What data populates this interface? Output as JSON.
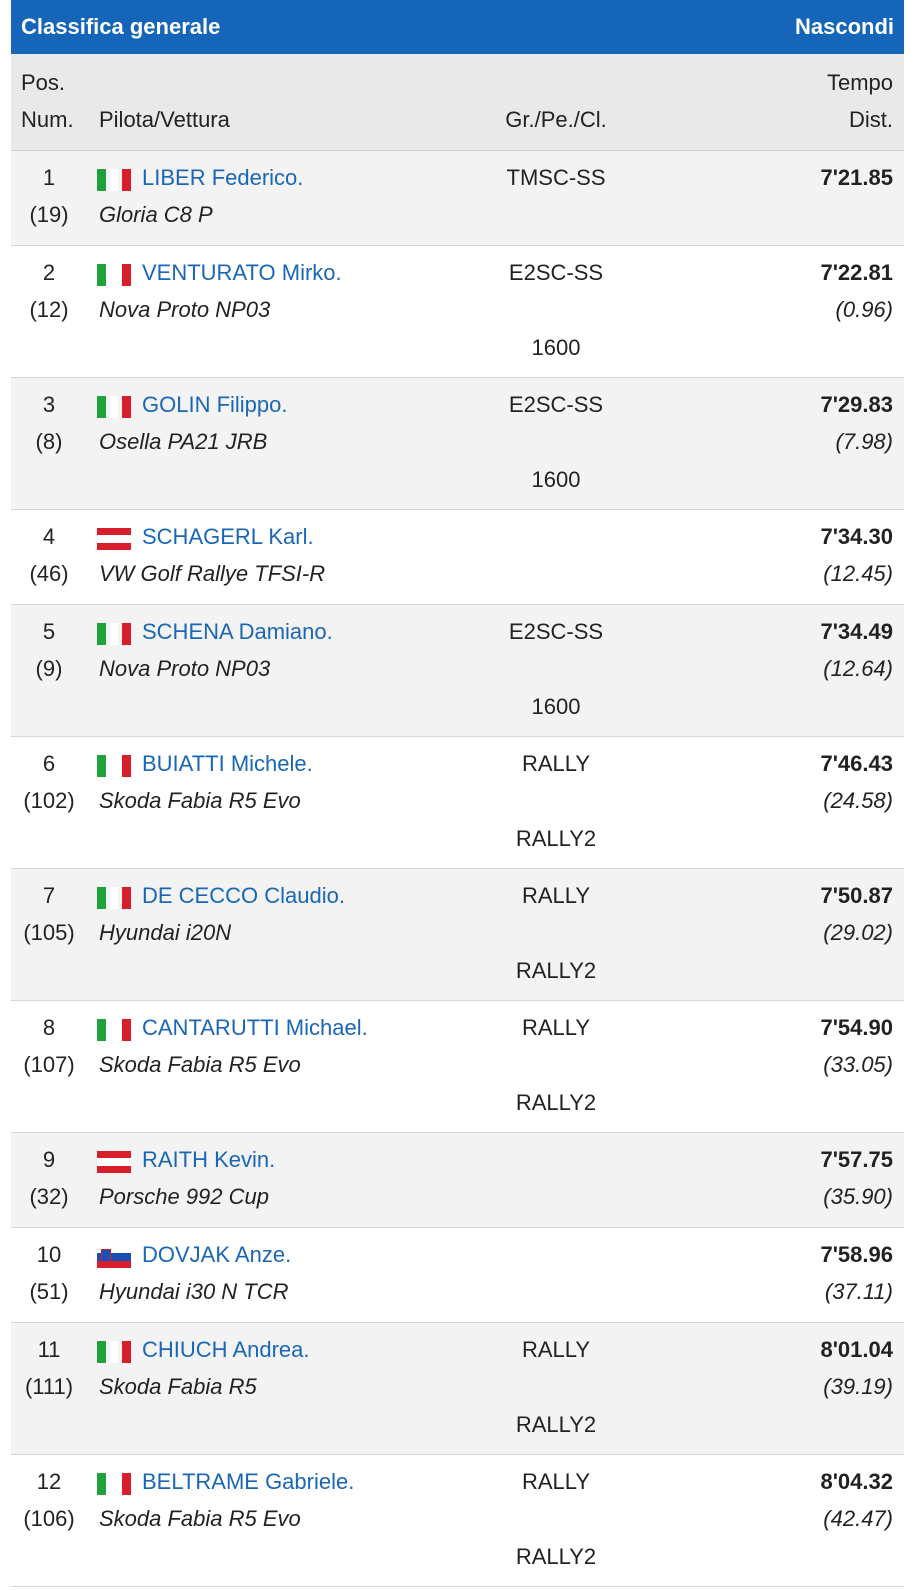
{
  "header": {
    "title": "Classifica generale",
    "toggle_label": "Nascondi"
  },
  "columns": {
    "pos": "Pos.",
    "num": "Num.",
    "driver": "Pilota/Vettura",
    "group": "Gr./Pe./Cl.",
    "time": "Tempo",
    "dist": "Dist."
  },
  "rows": [
    {
      "pos": "1",
      "num": "(19)",
      "flag": "italy-flag-icon",
      "driver": "LIBER Federico.",
      "car": "Gloria C8 P",
      "group": "TMSC-SS",
      "class": "",
      "time": "7'21.85",
      "dist": ""
    },
    {
      "pos": "2",
      "num": "(12)",
      "flag": "italy-flag-icon",
      "driver": "VENTURATO Mirko.",
      "car": "Nova Proto NP03",
      "group": "E2SC-SS",
      "class": "1600",
      "time": "7'22.81",
      "dist": "(0.96)"
    },
    {
      "pos": "3",
      "num": "(8)",
      "flag": "italy-flag-icon",
      "driver": "GOLIN Filippo.",
      "car": "Osella PA21 JRB",
      "group": "E2SC-SS",
      "class": "1600",
      "time": "7'29.83",
      "dist": "(7.98)"
    },
    {
      "pos": "4",
      "num": "(46)",
      "flag": "austria-flag-icon",
      "driver": "SCHAGERL Karl.",
      "car": "VW Golf Rallye TFSI-R",
      "group": "",
      "class": "",
      "time": "7'34.30",
      "dist": "(12.45)"
    },
    {
      "pos": "5",
      "num": "(9)",
      "flag": "italy-flag-icon",
      "driver": "SCHENA Damiano.",
      "car": "Nova Proto NP03",
      "group": "E2SC-SS",
      "class": "1600",
      "time": "7'34.49",
      "dist": "(12.64)"
    },
    {
      "pos": "6",
      "num": "(102)",
      "flag": "italy-flag-icon",
      "driver": "BUIATTI Michele.",
      "car": "Skoda Fabia R5 Evo",
      "group": "RALLY",
      "class": "RALLY2",
      "time": "7'46.43",
      "dist": "(24.58)"
    },
    {
      "pos": "7",
      "num": "(105)",
      "flag": "italy-flag-icon",
      "driver": "DE CECCO Claudio.",
      "car": "Hyundai i20N",
      "group": "RALLY",
      "class": "RALLY2",
      "time": "7'50.87",
      "dist": "(29.02)"
    },
    {
      "pos": "8",
      "num": "(107)",
      "flag": "italy-flag-icon",
      "driver": "CANTARUTTI Michael.",
      "car": "Skoda Fabia R5 Evo",
      "group": "RALLY",
      "class": "RALLY2",
      "time": "7'54.90",
      "dist": "(33.05)"
    },
    {
      "pos": "9",
      "num": "(32)",
      "flag": "austria-flag-icon",
      "driver": "RAITH Kevin.",
      "car": "Porsche 992 Cup",
      "group": "",
      "class": "",
      "time": "7'57.75",
      "dist": "(35.90)"
    },
    {
      "pos": "10",
      "num": "(51)",
      "flag": "slovenia-flag-icon",
      "driver": "DOVJAK Anze.",
      "car": "Hyundai i30 N TCR",
      "group": "",
      "class": "",
      "time": "7'58.96",
      "dist": "(37.11)"
    },
    {
      "pos": "11",
      "num": "(111)",
      "flag": "italy-flag-icon",
      "driver": "CHIUCH Andrea.",
      "car": "Skoda Fabia R5",
      "group": "RALLY",
      "class": "RALLY2",
      "time": "8'01.04",
      "dist": "(39.19)"
    },
    {
      "pos": "12",
      "num": "(106)",
      "flag": "italy-flag-icon",
      "driver": "BELTRAME Gabriele.",
      "car": "Skoda Fabia R5 Evo",
      "group": "RALLY",
      "class": "RALLY2",
      "time": "8'04.32",
      "dist": "(42.47)"
    }
  ]
}
